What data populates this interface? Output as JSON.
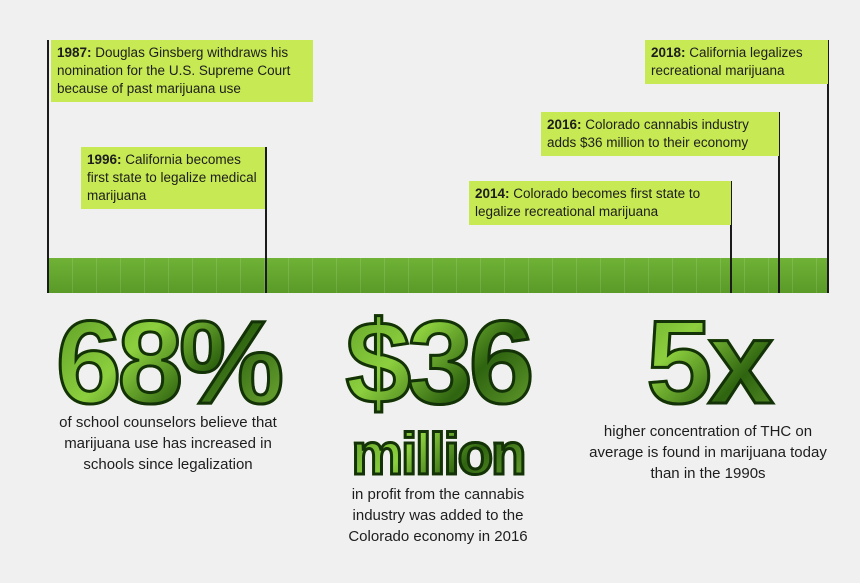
{
  "timeline": {
    "events": [
      {
        "year": "1987:",
        "text": "Douglas Ginsberg withdraws his nomination for the U.S. Supreme Court because of past marijuana use"
      },
      {
        "year": "1996:",
        "text": "California becomes first state to legalize medical marijuana"
      },
      {
        "year": "2014:",
        "text": "Colorado becomes first state to legalize recreational marijuana"
      },
      {
        "year": "2016:",
        "text": "Colorado cannabis industry adds $36 million to their economy"
      },
      {
        "year": "2018:",
        "text": "California legalizes recreational marijuana"
      }
    ]
  },
  "stats": [
    {
      "figure": "68%",
      "caption": "of school counselors believe that marijuana use has increased in schools since legalization"
    },
    {
      "figure": "$36",
      "unit": "million",
      "caption": "in profit from the cannabis industry was added to the Colorado economy in 2016"
    },
    {
      "figure": "5x",
      "caption": "higher concentration of THC on average is found in marijuana today than in the 1990s"
    }
  ]
}
